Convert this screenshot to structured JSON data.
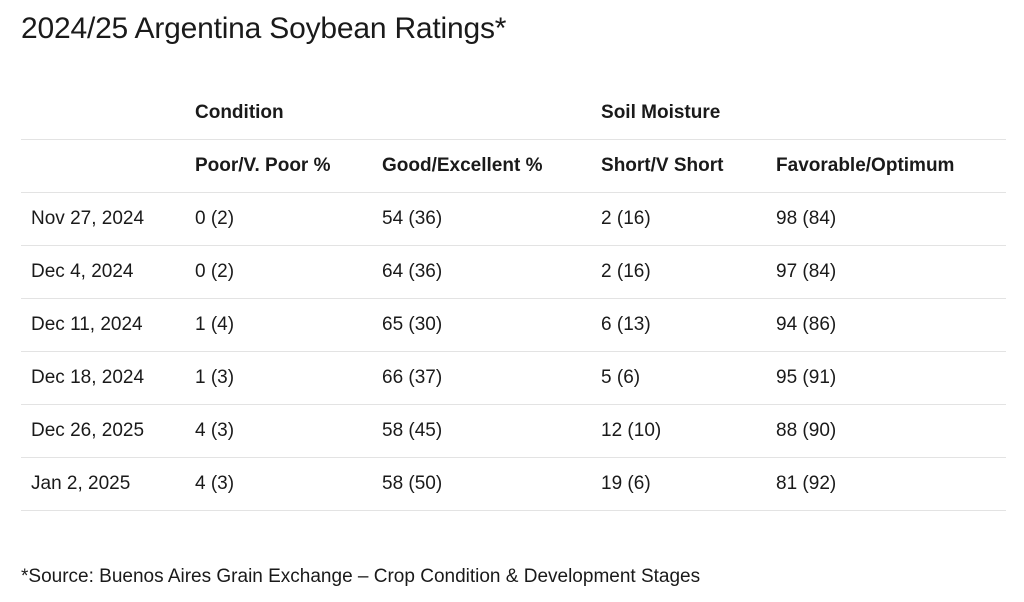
{
  "title": "2024/25 Argentina Soybean Ratings*",
  "table": {
    "groups": {
      "condition": "Condition",
      "soil_moisture": "Soil Moisture"
    },
    "columns": {
      "date": "",
      "poor": "Poor/V. Poor %",
      "good": "Good/Excellent %",
      "short": "Short/V Short",
      "favorable": "Favorable/Optimum"
    },
    "rows": [
      {
        "date": "Nov 27, 2024",
        "poor": "0 (2)",
        "good": "54 (36)",
        "short": "2 (16)",
        "favorable": "98 (84)"
      },
      {
        "date": "Dec 4, 2024",
        "poor": "0 (2)",
        "good": "64 (36)",
        "short": "2 (16)",
        "favorable": "97 (84)"
      },
      {
        "date": "Dec 11, 2024",
        "poor": "1 (4)",
        "good": "65 (30)",
        "short": "6 (13)",
        "favorable": "94 (86)"
      },
      {
        "date": "Dec 18, 2024",
        "poor": "1 (3)",
        "good": "66 (37)",
        "short": "5 (6)",
        "favorable": "95 (91)"
      },
      {
        "date": "Dec 26, 2025",
        "poor": "4 (3)",
        "good": "58 (45)",
        "short": "12 (10)",
        "favorable": "88 (90)"
      },
      {
        "date": "Jan 2, 2025",
        "poor": "4 (3)",
        "good": "58 (50)",
        "short": "19 (6)",
        "favorable": "81 (92)"
      }
    ]
  },
  "footnote": "*Source: Buenos Aires Grain Exchange – Crop Condition & Development Stages"
}
